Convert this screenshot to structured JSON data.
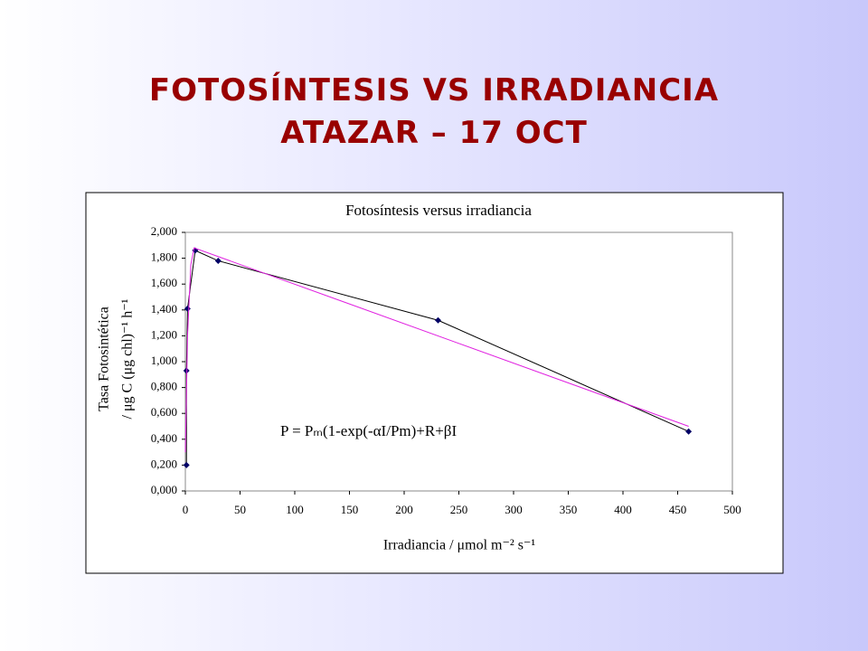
{
  "slide_title": [
    "FOTOSÍNTESIS VS IRRADIANCIA",
    "ATAZAR – 17 OCT"
  ],
  "chart_data": {
    "type": "line",
    "title": "Fotosíntesis versus irradiancia",
    "x_label": "Irradiancia / μmol m⁻² s⁻¹",
    "y_label": [
      "Tasa Fotosintética",
      "/ μg C (μg chl)⁻¹ h⁻¹"
    ],
    "annotation": "P = Pₘ(1-exp(-αI/Pm)+R+βI",
    "xlim": [
      0,
      500
    ],
    "xticks": [
      0,
      50,
      100,
      150,
      200,
      250,
      300,
      350,
      400,
      450,
      500
    ],
    "ylim": [
      0,
      2
    ],
    "yticks": [
      {
        "value": 0,
        "label": "0,000"
      },
      {
        "value": 0.2,
        "label": "0,200"
      },
      {
        "value": 0.4,
        "label": "0,400"
      },
      {
        "value": 0.6,
        "label": "0,600"
      },
      {
        "value": 0.8,
        "label": "0,800"
      },
      {
        "value": 1,
        "label": "1,000"
      },
      {
        "value": 1.2,
        "label": "1,200"
      },
      {
        "value": 1.4,
        "label": "1,400"
      },
      {
        "value": 1.6,
        "label": "1,600"
      },
      {
        "value": 1.8,
        "label": "1,800"
      },
      {
        "value": 2,
        "label": "2,000"
      }
    ],
    "series": [
      {
        "color": "#000066",
        "markers": true,
        "x": [
          1,
          1,
          2,
          9,
          30,
          231,
          460
        ],
        "values": [
          0.2,
          0.93,
          1.41,
          1.86,
          1.78,
          1.32,
          0.46
        ]
      },
      {
        "color": "#e020e0",
        "markers": false,
        "x": [
          0,
          2,
          5,
          8,
          460
        ],
        "values": [
          0.3,
          1.2,
          1.75,
          1.88,
          0.5
        ]
      }
    ]
  }
}
